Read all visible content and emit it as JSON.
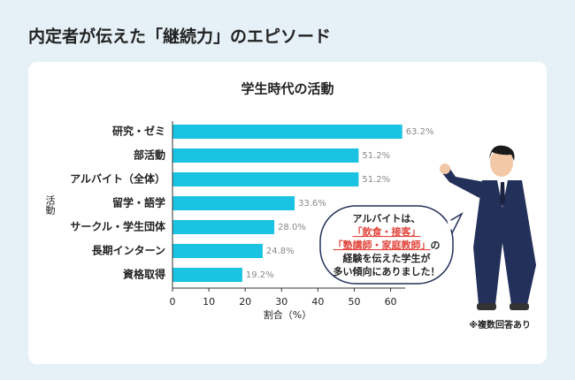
{
  "header": {
    "title": "内定者が伝えた「継続力」のエピソード"
  },
  "chart_data": {
    "type": "hbar",
    "title": "学生時代の活動",
    "categories": [
      "研究・ゼミ",
      "部活動",
      "アルバイト（全体）",
      "留学・語学",
      "サークル・学生団体",
      "長期インターン",
      "資格取得"
    ],
    "values": [
      63.2,
      51.2,
      51.2,
      33.6,
      28.0,
      24.8,
      19.2
    ],
    "value_labels": [
      "63.2%",
      "51.2%",
      "51.2%",
      "33.6%",
      "28.0%",
      "24.8%",
      "19.2%"
    ],
    "color": "#1bc3e3",
    "xlim": [
      0,
      64
    ],
    "xticks": [
      0,
      10,
      20,
      30,
      40,
      50,
      60
    ],
    "x_label": "割合（%）",
    "y_label": "活動"
  },
  "callout": {
    "lines": [
      [
        "アルバイトは、"
      ],
      [
        "「飲食・接客」"
      ],
      [
        "「塾講師・家庭教師」",
        "の"
      ],
      [
        "経験を伝えた学生が"
      ],
      [
        "多い傾向にありました！"
      ]
    ]
  },
  "note": "※複数回答あり"
}
